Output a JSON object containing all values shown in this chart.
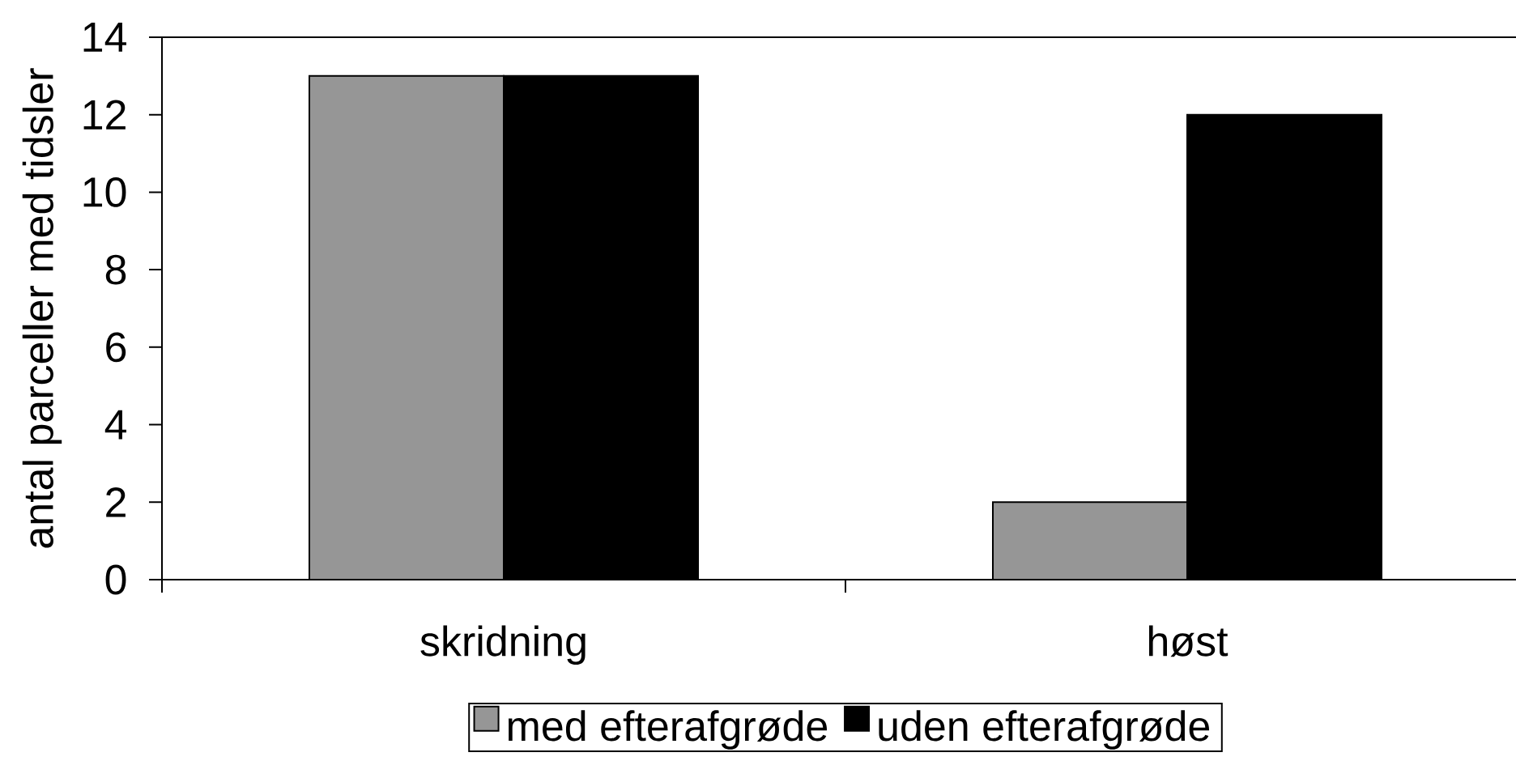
{
  "chart_data": {
    "type": "bar",
    "ylabel": "antal parceller med tidsler",
    "categories": [
      "skridning",
      "høst"
    ],
    "series": [
      {
        "name": "med efterafgrøde",
        "color": "#969696",
        "values": [
          13,
          2
        ]
      },
      {
        "name": "uden efterafgrøde",
        "color": "#000000",
        "values": [
          13,
          12
        ]
      }
    ],
    "ylim": [
      0,
      14
    ],
    "yticks": [
      0,
      2,
      4,
      6,
      8,
      10,
      12,
      14
    ],
    "legend": "bottom"
  }
}
